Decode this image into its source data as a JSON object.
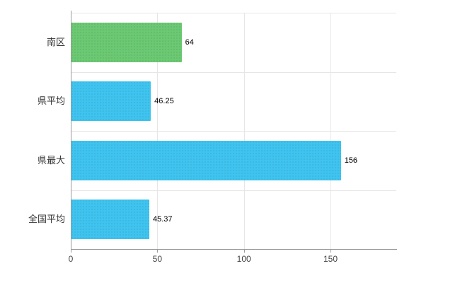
{
  "chart_data": {
    "type": "bar",
    "orientation": "horizontal",
    "title": "",
    "categories": [
      "南区",
      "県平均",
      "県最大",
      "全国平均"
    ],
    "values": [
      64,
      46.25,
      156,
      45.37
    ],
    "value_labels": [
      "64",
      "46.25",
      "156",
      "45.37"
    ],
    "bar_colors": [
      "#6cc973",
      "#3fc4f0",
      "#3fc4f0",
      "#3fc4f0"
    ],
    "xlim": [
      0,
      188
    ],
    "x_ticks": [
      0,
      50,
      100,
      150
    ],
    "x_tick_labels": [
      "0",
      "50",
      "100",
      "150"
    ],
    "grid": true,
    "legend": false,
    "background": "#ffffff",
    "axis_color": "#9a9a9a",
    "grid_color": "#e6e6e6",
    "label_color": "#333333"
  }
}
